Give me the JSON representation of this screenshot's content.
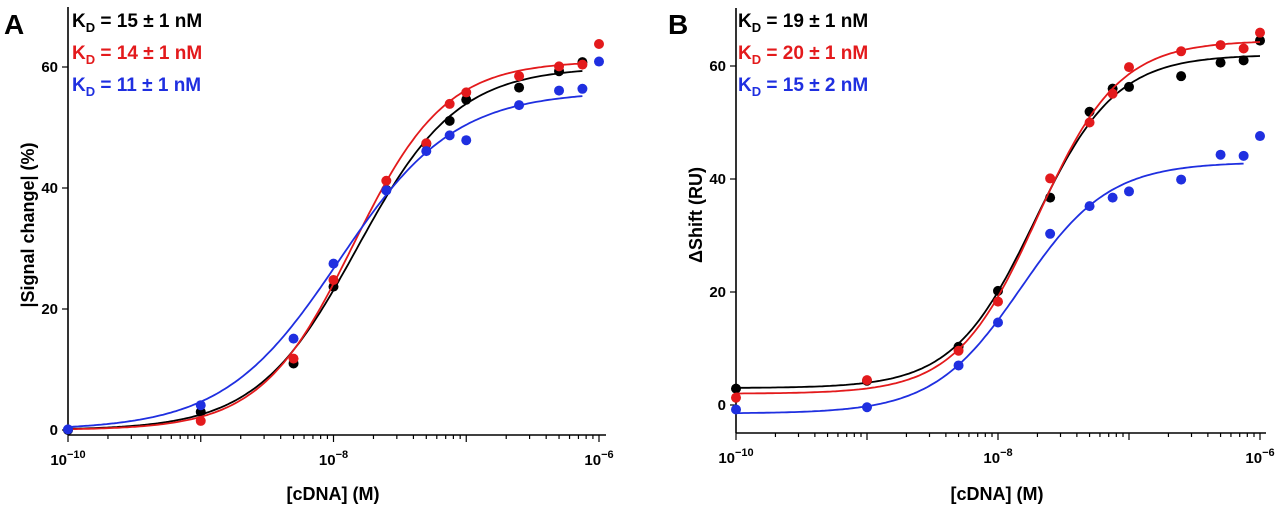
{
  "chart_data": [
    {
      "type": "scatter",
      "panel_label": "A",
      "xlabel": "[cDNA] (M)",
      "ylabel": "|Signal change| (%)",
      "xscale": "log",
      "xlim": [
        1e-10,
        1e-06
      ],
      "ylim": [
        -2.3,
        70
      ],
      "x_ticks": [
        {
          "value": 1e-10,
          "base": "10",
          "exp": "−10"
        },
        {
          "value": 1e-08,
          "base": "10",
          "exp": "−8"
        },
        {
          "value": 1e-06,
          "base": "10",
          "exp": "−6"
        }
      ],
      "y_ticks": [
        0,
        20,
        40,
        60
      ],
      "grid": false,
      "legend_placement": "top-left",
      "series": [
        {
          "color": "#000000",
          "kd_label": {
            "k": "K",
            "sub": "D",
            "rest": " = 15 ± 1 nM"
          },
          "x": [
            1e-10,
            1e-09,
            5e-09,
            1e-08,
            2.5e-08,
            5e-08,
            7.5e-08,
            1e-07,
            2.5e-07,
            5e-07,
            7.5e-07
          ],
          "y": [
            0,
            3.0,
            11,
            23.7,
            39.7,
            47.3,
            51.1,
            54.6,
            56.6,
            59.3,
            60.8
          ],
          "fit": {
            "bottom": 0,
            "top": 60,
            "kd": 1.5e-08,
            "hill": 1.15,
            "x_end": 7.5e-07
          }
        },
        {
          "color": "#e31a1c",
          "kd_label": {
            "k": "K",
            "sub": "D",
            "rest": " = 14 ± 1 nM"
          },
          "x": [
            1e-09,
            5e-09,
            1e-08,
            2.5e-08,
            5e-08,
            7.5e-08,
            1e-07,
            2.5e-07,
            5e-07,
            7.5e-07,
            1e-06
          ],
          "y": [
            1.5,
            11.8,
            24.8,
            41.2,
            47.4,
            53.9,
            55.8,
            58.5,
            60.1,
            60.4,
            63.8
          ],
          "fit": {
            "bottom": 0,
            "top": 61,
            "kd": 1.4e-08,
            "hill": 1.25,
            "x_end": 7.5e-07
          }
        },
        {
          "color": "#1f2fe0",
          "kd_label": {
            "k": "K",
            "sub": "D",
            "rest": " = 11 ± 1 nM"
          },
          "x": [
            1e-10,
            1e-09,
            5e-09,
            1e-08,
            2.5e-08,
            5e-08,
            7.5e-08,
            1e-07,
            2.5e-07,
            5e-07,
            7.5e-07,
            1e-06
          ],
          "y": [
            0.1,
            4.1,
            15.1,
            27.5,
            39.6,
            46.1,
            48.7,
            47.9,
            53.7,
            56.1,
            56.4,
            60.9
          ],
          "fit": {
            "bottom": 0,
            "top": 56,
            "kd": 1.1e-08,
            "hill": 1.0,
            "x_end": 7.5e-07
          }
        }
      ]
    },
    {
      "type": "scatter",
      "panel_label": "B",
      "xlabel": "[cDNA] (M)",
      "ylabel": "ΔShift (RU)",
      "xscale": "log",
      "xlim": [
        1e-10,
        1e-06
      ],
      "ylim": [
        -5,
        70
      ],
      "x_ticks": [
        {
          "value": 1e-10,
          "base": "10",
          "exp": "−10"
        },
        {
          "value": 1e-08,
          "base": "10",
          "exp": "−8"
        },
        {
          "value": 1e-06,
          "base": "10",
          "exp": "−6"
        }
      ],
      "y_ticks": [
        0,
        20,
        40,
        60
      ],
      "grid": false,
      "legend_placement": "top-left",
      "series": [
        {
          "color": "#000000",
          "kd_label": {
            "k": "K",
            "sub": "D",
            "rest": " = 19 ± 1 nM"
          },
          "x": [
            1e-10,
            1e-09,
            5e-09,
            1e-08,
            2.5e-08,
            5e-08,
            7.5e-08,
            1e-07,
            2.5e-07,
            5e-07,
            7.5e-07,
            1e-06
          ],
          "y": [
            2.9,
            4.3,
            10.3,
            20.2,
            36.7,
            51.9,
            56,
            56.3,
            58.2,
            60.6,
            61,
            64.5
          ],
          "fit": {
            "bottom": 3,
            "top": 62,
            "kd": 1.9e-08,
            "hill": 1.4,
            "x_end": 1e-06
          }
        },
        {
          "color": "#e31a1c",
          "kd_label": {
            "k": "K",
            "sub": "D",
            "rest": " = 20 ± 1 nM"
          },
          "x": [
            1e-10,
            1e-09,
            5e-09,
            1e-08,
            2.5e-08,
            5e-08,
            7.5e-08,
            1e-07,
            2.5e-07,
            5e-07,
            7.5e-07,
            1e-06
          ],
          "y": [
            1.3,
            4.4,
            9.6,
            18.3,
            40.1,
            50,
            55.1,
            59.8,
            62.6,
            63.7,
            63.1,
            65.9
          ],
          "fit": {
            "bottom": 2,
            "top": 64.5,
            "kd": 2e-08,
            "hill": 1.4,
            "x_end": 1e-06
          }
        },
        {
          "color": "#1f2fe0",
          "kd_label": {
            "k": "K",
            "sub": "D",
            "rest": " = 15 ± 2 nM"
          },
          "x": [
            1e-10,
            1e-09,
            5e-09,
            1e-08,
            2.5e-08,
            5e-08,
            7.5e-08,
            1e-07,
            2.5e-07,
            5e-07,
            7.5e-07,
            1e-06
          ],
          "y": [
            -0.8,
            -0.4,
            7,
            14.6,
            30.3,
            35.2,
            36.7,
            37.8,
            39.9,
            44.3,
            44.1,
            47.6
          ],
          "fit": {
            "bottom": -1.5,
            "top": 43,
            "kd": 1.5e-08,
            "hill": 1.3,
            "x_end": 7.5e-07
          }
        }
      ]
    }
  ]
}
